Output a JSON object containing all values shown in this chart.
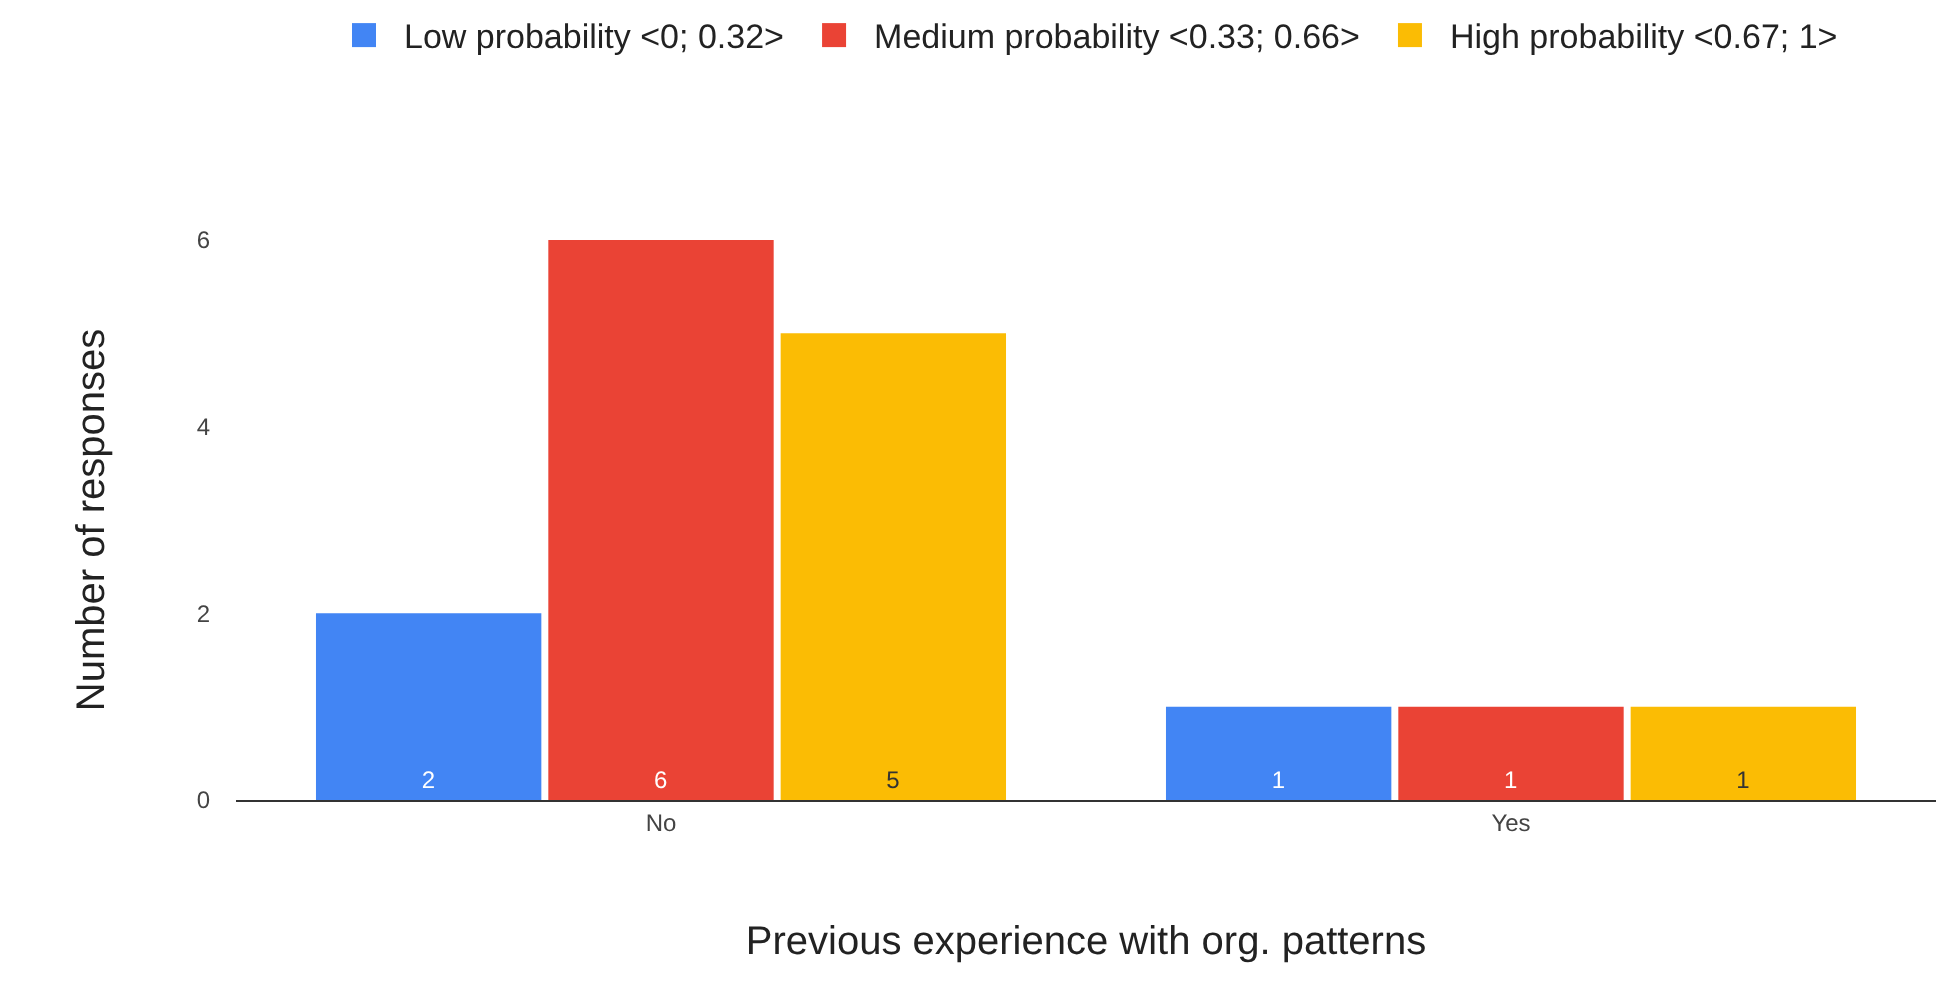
{
  "chart_data": {
    "type": "bar",
    "xlabel": "Previous experience with org. patterns",
    "ylabel": "Number of responses",
    "categories": [
      "No",
      "Yes"
    ],
    "series": [
      {
        "name": "Low probability <0; 0.32>",
        "color": "#4285f4",
        "values": [
          2,
          1
        ]
      },
      {
        "name": "Medium probability <0.33; 0.66>",
        "color": "#ea4335",
        "values": [
          6,
          1
        ]
      },
      {
        "name": "High probability <0.67; 1>",
        "color": "#fbbc04",
        "values": [
          5,
          1
        ]
      }
    ],
    "ylim": [
      0,
      6
    ],
    "yticks": [
      0,
      2,
      4,
      6
    ],
    "grid": false,
    "legend": "top",
    "data_labels": true
  }
}
